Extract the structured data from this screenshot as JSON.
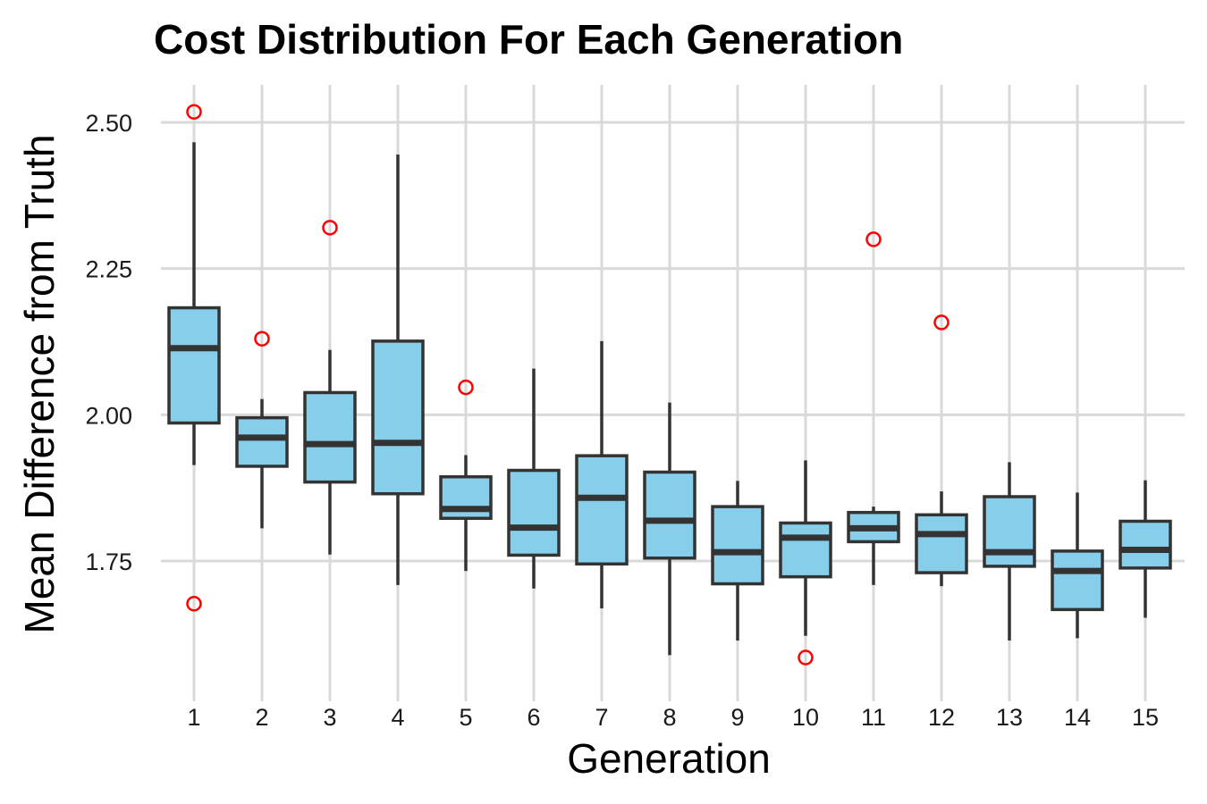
{
  "chart_data": {
    "type": "boxplot",
    "title": "Cost Distribution For Each Generation",
    "xlabel": "Generation",
    "ylabel": "Mean Difference from Truth",
    "categories": [
      "1",
      "2",
      "3",
      "4",
      "5",
      "6",
      "7",
      "8",
      "9",
      "10",
      "11",
      "12",
      "13",
      "14",
      "15"
    ],
    "yticks": [
      "1.75",
      "2.00",
      "2.25",
      "2.50"
    ],
    "ylim": [
      1.545,
      2.565
    ],
    "grid": true,
    "legend": "none",
    "boxes": [
      {
        "category": "1",
        "whisker_low": 1.914,
        "q1": 1.986,
        "median": 2.114,
        "q3": 2.183,
        "whisker_high": 2.466,
        "outliers": [
          2.518,
          1.677
        ]
      },
      {
        "category": "2",
        "whisker_low": 1.806,
        "q1": 1.912,
        "median": 1.961,
        "q3": 1.995,
        "whisker_high": 2.027,
        "outliers": [
          2.13
        ]
      },
      {
        "category": "3",
        "whisker_low": 1.761,
        "q1": 1.885,
        "median": 1.95,
        "q3": 2.038,
        "whisker_high": 2.111,
        "outliers": [
          2.32
        ]
      },
      {
        "category": "4",
        "whisker_low": 1.709,
        "q1": 1.865,
        "median": 1.952,
        "q3": 2.126,
        "whisker_high": 2.445,
        "outliers": []
      },
      {
        "category": "5",
        "whisker_low": 1.733,
        "q1": 1.823,
        "median": 1.839,
        "q3": 1.894,
        "whisker_high": 1.931,
        "outliers": [
          2.047
        ]
      },
      {
        "category": "6",
        "whisker_low": 1.703,
        "q1": 1.76,
        "median": 1.807,
        "q3": 1.905,
        "whisker_high": 2.079,
        "outliers": []
      },
      {
        "category": "7",
        "whisker_low": 1.669,
        "q1": 1.745,
        "median": 1.858,
        "q3": 1.93,
        "whisker_high": 2.126,
        "outliers": []
      },
      {
        "category": "8",
        "whisker_low": 1.589,
        "q1": 1.755,
        "median": 1.819,
        "q3": 1.902,
        "whisker_high": 2.021,
        "outliers": []
      },
      {
        "category": "9",
        "whisker_low": 1.614,
        "q1": 1.711,
        "median": 1.765,
        "q3": 1.843,
        "whisker_high": 1.887,
        "outliers": []
      },
      {
        "category": "10",
        "whisker_low": 1.622,
        "q1": 1.723,
        "median": 1.79,
        "q3": 1.815,
        "whisker_high": 1.922,
        "outliers": [
          1.585
        ]
      },
      {
        "category": "11",
        "whisker_low": 1.709,
        "q1": 1.783,
        "median": 1.806,
        "q3": 1.833,
        "whisker_high": 1.843,
        "outliers": [
          2.3
        ]
      },
      {
        "category": "12",
        "whisker_low": 1.707,
        "q1": 1.73,
        "median": 1.796,
        "q3": 1.829,
        "whisker_high": 1.869,
        "outliers": [
          2.158
        ]
      },
      {
        "category": "13",
        "whisker_low": 1.614,
        "q1": 1.741,
        "median": 1.765,
        "q3": 1.86,
        "whisker_high": 1.919,
        "outliers": []
      },
      {
        "category": "14",
        "whisker_low": 1.618,
        "q1": 1.667,
        "median": 1.733,
        "q3": 1.767,
        "whisker_high": 1.867,
        "outliers": []
      },
      {
        "category": "15",
        "whisker_low": 1.653,
        "q1": 1.738,
        "median": 1.769,
        "q3": 1.818,
        "whisker_high": 1.888,
        "outliers": []
      }
    ]
  },
  "colors": {
    "box_fill": "#87CEEB",
    "box_stroke": "#333333",
    "outlier": "#FF0000",
    "grid": "#D9D9D9",
    "background": "#FFFFFF"
  }
}
